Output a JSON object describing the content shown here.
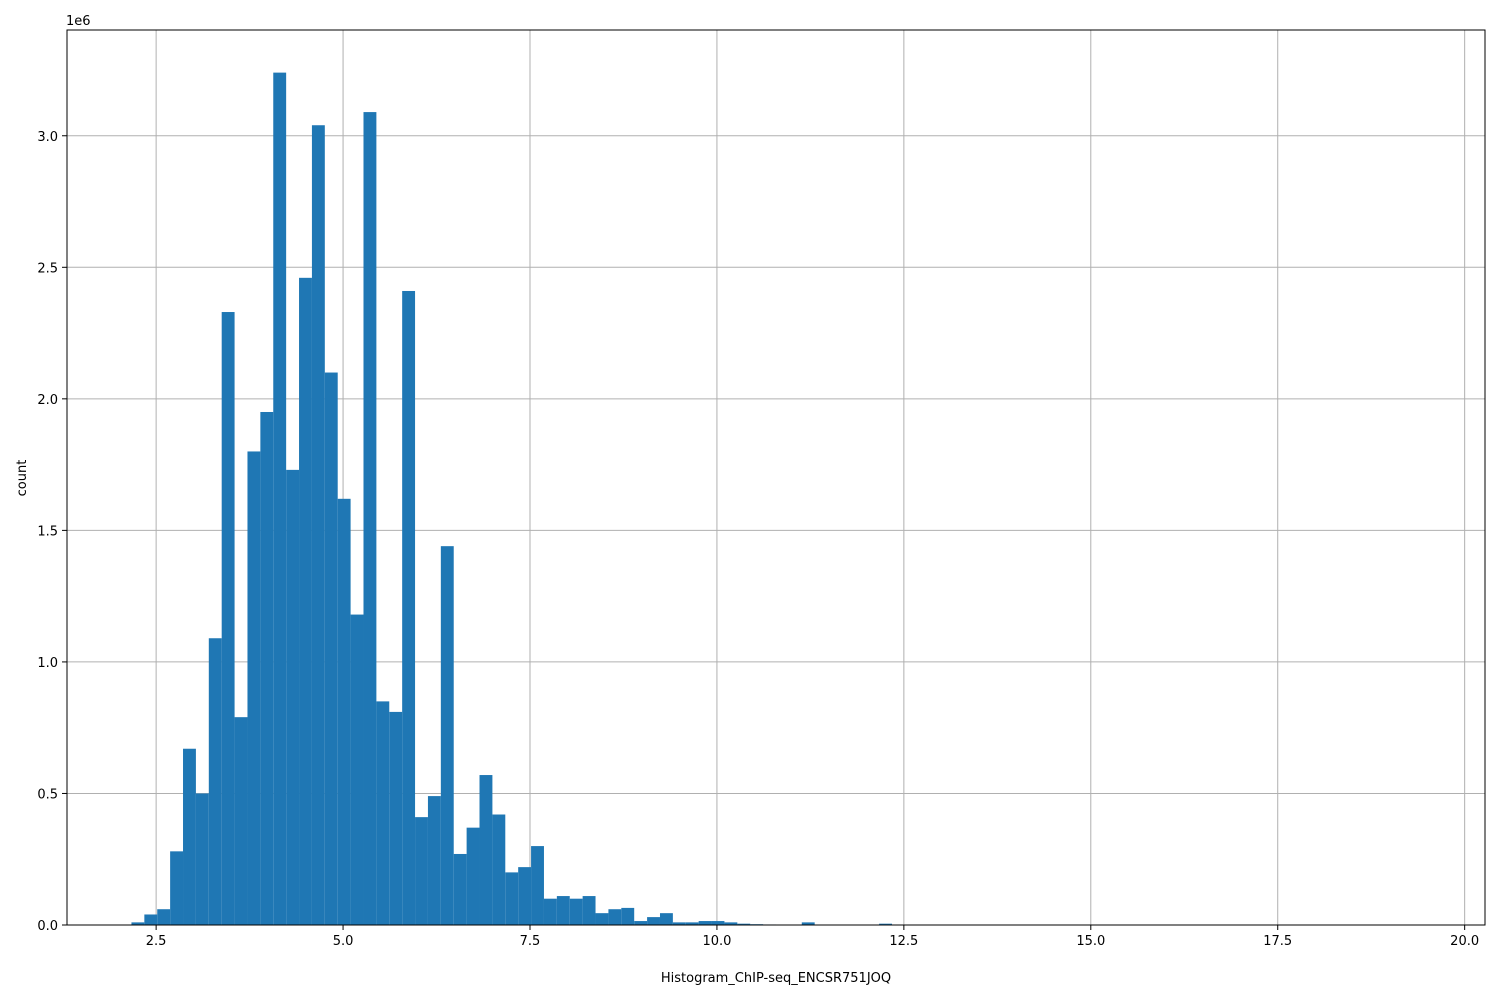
{
  "chart_data": {
    "type": "histogram",
    "x_label": "Histogram_ChIP-seq_ENCSR751JOQ",
    "y_label": "count",
    "y_offset_label": "1e6",
    "color": "#1f77b4",
    "grid": true,
    "bins": [
      2.17,
      2.3424,
      2.5148,
      2.6872,
      2.8596,
      3.032,
      3.2044,
      3.3768,
      3.5492,
      3.7216,
      3.894,
      4.0664,
      4.2388,
      4.4112,
      4.5836,
      4.756,
      4.9284,
      5.1008,
      5.2732,
      5.4456,
      5.618,
      5.7904,
      5.9628,
      6.1352,
      6.3076,
      6.48,
      6.6524,
      6.8248,
      6.9972,
      7.1696,
      7.342,
      7.5144,
      7.6868,
      7.8592,
      8.0316,
      8.204,
      8.3764,
      8.5488,
      8.7212,
      8.8936,
      9.066,
      9.2384,
      9.4108,
      9.5832,
      9.7556,
      9.928,
      10.1004,
      10.2728,
      10.4452,
      10.6176,
      10.79,
      10.9624,
      11.1348,
      11.3072,
      11.4796,
      11.652,
      11.8244,
      11.9968,
      12.1692,
      12.3416,
      12.514,
      12.6864,
      12.8588,
      13.0312,
      13.2036,
      13.376,
      13.5484,
      13.7208,
      13.8932,
      14.0656,
      14.238,
      14.4104,
      14.5828,
      14.7552,
      14.9276,
      15.1,
      15.2724,
      15.4448,
      15.6172,
      15.7896,
      15.962,
      16.1344,
      16.3068,
      16.4792,
      16.6516,
      16.824,
      16.9964,
      17.1688,
      17.3412,
      17.5136,
      17.686,
      17.8584,
      18.0308,
      18.2032,
      18.3756,
      18.548,
      18.7204,
      18.8928,
      19.0652,
      19.2376,
      19.41
    ],
    "counts": [
      10000,
      40000,
      60000,
      280000,
      670000,
      500000,
      1090000,
      2330000,
      790000,
      1800000,
      1950000,
      3240000,
      1730000,
      2460000,
      3040000,
      2100000,
      1620000,
      1180000,
      3090000,
      850000,
      810000,
      2410000,
      410000,
      490000,
      1440000,
      270000,
      370000,
      570000,
      420000,
      200000,
      220000,
      300000,
      100000,
      110000,
      100000,
      110000,
      45000,
      60000,
      65000,
      15000,
      30000,
      45000,
      10000,
      10000,
      15000,
      15000,
      10000,
      5000,
      3000,
      2000,
      1000,
      1000,
      10000,
      1000,
      500,
      500,
      500,
      500,
      5000,
      500,
      0,
      0,
      0,
      0,
      0,
      0,
      0,
      0,
      0,
      0,
      0,
      0,
      0,
      0,
      0,
      0,
      0,
      0,
      0,
      0,
      0,
      0,
      0,
      0,
      0,
      0,
      0,
      0,
      0,
      0,
      0,
      0,
      0,
      0,
      0,
      0,
      0,
      0,
      0,
      100
    ],
    "xlim": [
      1.308,
      20.272
    ],
    "ylim": [
      0,
      3402000
    ],
    "xticks": [
      2.5,
      {
        "value": 5,
        "label": "5.0"
      },
      7.5,
      {
        "value": 10,
        "label": "10.0"
      },
      12.5,
      {
        "value": 15,
        "label": "15.0"
      },
      17.5,
      {
        "value": 20,
        "label": "20.0"
      }
    ],
    "yticks": [
      {
        "value": 0,
        "label": "0.0"
      },
      {
        "value": 500000,
        "label": "0.5"
      },
      {
        "value": 1000000,
        "label": "1.0"
      },
      {
        "value": 1500000,
        "label": "1.5"
      },
      {
        "value": 2000000,
        "label": "2.0"
      },
      {
        "value": 2500000,
        "label": "2.5"
      },
      {
        "value": 3000000,
        "label": "3.0"
      }
    ]
  }
}
